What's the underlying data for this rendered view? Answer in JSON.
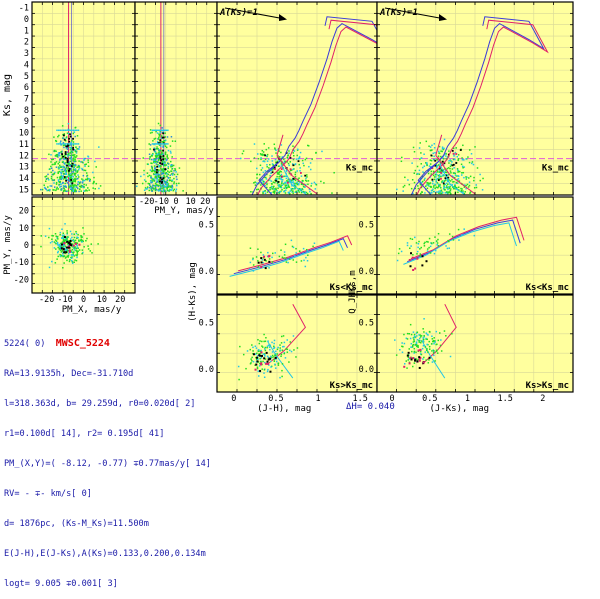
{
  "colors": {
    "panel_bg": "#ffff9e",
    "grid": "#d8d898",
    "frame": "#000000",
    "isochrone_blue": "#3b3bd9",
    "isochrone_red": "#e0206a",
    "track_cyan": "#22c6e6",
    "stars_green": "#22dd22",
    "stars_members": "#111111",
    "stars_black": "#000000",
    "hline": "#e05bd6",
    "info_text": "#1a1aa8",
    "info_name": "#e00000"
  },
  "info": {
    "line0_id": "5224( 0)",
    "line0_name": "MWSC_5224",
    "line1": "RA=13.9135h, Dec=-31.710d",
    "line2": "l=318.363d, b= 29.259d, r0=0.020d[ 2]",
    "line3": "r1=0.100d[ 14], r2= 0.195d[ 41]",
    "line4": "PM_(X,Y)=( -8.12, -0.77) ∓0.77mas/y[ 14]",
    "line5": "RV= - ∓- km/s[ 0]",
    "line6": "d= 1876pc, (Ks-M_Ks)=11.500m",
    "line7": "E(J-H),E(J-Ks),A(Ks)=0.133,0.200,0.134m",
    "line8": "logt= 9.005 ∓0.001[ 3]"
  },
  "bottom_text": {
    "delta_h": "ΔH= 0.040"
  },
  "chart_data": [
    {
      "id": "pmx-ks",
      "type": "scatter",
      "xlabel": "",
      "ylabel": "Ks, mag",
      "ylim": [
        15.5,
        -1.5
      ],
      "yticks": [
        "-1",
        "0",
        "1",
        "2",
        "3",
        "4",
        "5",
        "6",
        "7",
        "8",
        "9",
        "10",
        "11",
        "12",
        "13",
        "14",
        "15"
      ],
      "vline_x": -8.12,
      "hline_y": 12.3,
      "series_note": "stars"
    },
    {
      "id": "pmy-ks",
      "type": "scatter",
      "xlabel": "PM_Y, mas/y",
      "xticks": [
        "-20",
        "-10",
        "0",
        "10",
        "20"
      ],
      "ylim": [
        15.5,
        -1.5
      ],
      "vline_x": -0.77,
      "hline_y": 12.3
    },
    {
      "id": "pm-vector",
      "type": "scatter",
      "xlabel": "PM_X, mas/y",
      "ylabel": "PM_Y, mas/y",
      "xticks": [
        "-20",
        "-10",
        "0",
        "10",
        "20"
      ],
      "yticks": [
        "20",
        "10",
        "0",
        "-10",
        "-20"
      ],
      "xlim": [
        -28,
        28
      ],
      "ylim": [
        -28,
        28
      ]
    },
    {
      "id": "cmd-jh",
      "type": "line",
      "annotation_top": "A(Ks)=1",
      "hline_label": "Ks_mc",
      "ylim": [
        15.5,
        -1.5
      ]
    },
    {
      "id": "cmd-jks",
      "type": "line",
      "annotation_top": "A(Ks)=1",
      "hline_label": "Ks_mc",
      "ylim": [
        15.5,
        -1.5
      ]
    },
    {
      "id": "hk-jh-bright",
      "type": "scatter",
      "ylabel": "(H-Ks), mag",
      "yticks": [
        "0.5",
        "0.0"
      ],
      "label": "Ks<Ks_mc"
    },
    {
      "id": "q-jks-bright",
      "type": "scatter",
      "ylabel": "Q_JHKs,m",
      "yticks": [
        "0.5",
        "0.0"
      ],
      "label": "Ks<Ks_mc"
    },
    {
      "id": "hk-jh-faint",
      "type": "scatter",
      "xlabel": "(J-H), mag",
      "xticks": [
        "0",
        "0.5",
        "1",
        "1.5"
      ],
      "yticks": [
        "0.5",
        "0.0"
      ],
      "label": "Ks>Ks_mc"
    },
    {
      "id": "q-jks-faint",
      "type": "scatter",
      "xlabel": "(J-Ks), mag",
      "xticks": [
        "0",
        "0.5",
        "1",
        "1.5",
        "2"
      ],
      "yticks": [
        "0.5",
        "0.0"
      ],
      "label": "Ks>Ks_mc"
    }
  ]
}
